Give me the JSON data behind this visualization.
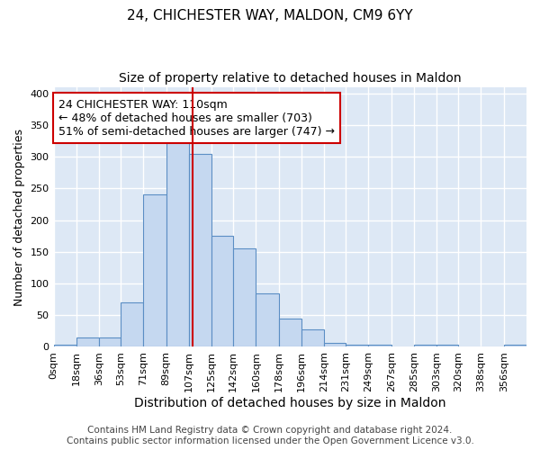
{
  "title": "24, CHICHESTER WAY, MALDON, CM9 6YY",
  "subtitle": "Size of property relative to detached houses in Maldon",
  "xlabel": "Distribution of detached houses by size in Maldon",
  "ylabel": "Number of detached properties",
  "bin_labels": [
    "0sqm",
    "18sqm",
    "36sqm",
    "53sqm",
    "71sqm",
    "89sqm",
    "107sqm",
    "125sqm",
    "142sqm",
    "160sqm",
    "178sqm",
    "196sqm",
    "214sqm",
    "231sqm",
    "249sqm",
    "267sqm",
    "285sqm",
    "303sqm",
    "320sqm",
    "338sqm",
    "356sqm"
  ],
  "bin_edges": [
    0,
    18,
    36,
    53,
    71,
    89,
    107,
    125,
    142,
    160,
    178,
    196,
    214,
    231,
    249,
    267,
    285,
    303,
    320,
    338,
    356,
    374
  ],
  "bar_heights": [
    3,
    15,
    15,
    70,
    240,
    335,
    305,
    175,
    155,
    85,
    45,
    27,
    7,
    4,
    4,
    0,
    3,
    3,
    0,
    0,
    3
  ],
  "bar_color": "#c5d8f0",
  "bar_edge_color": "#5b8ec4",
  "property_value": 110,
  "vline_color": "#cc0000",
  "annotation_text": "24 CHICHESTER WAY: 110sqm\n← 48% of detached houses are smaller (703)\n51% of semi-detached houses are larger (747) →",
  "annotation_box_color": "#ffffff",
  "annotation_box_edge_color": "#cc0000",
  "footer_line1": "Contains HM Land Registry data © Crown copyright and database right 2024.",
  "footer_line2": "Contains public sector information licensed under the Open Government Licence v3.0.",
  "ylim": [
    0,
    410
  ],
  "xlim": [
    0,
    374
  ],
  "background_color": "#dde8f5",
  "grid_color": "#ffffff",
  "title_fontsize": 11,
  "subtitle_fontsize": 10,
  "xlabel_fontsize": 10,
  "ylabel_fontsize": 9,
  "tick_fontsize": 8,
  "annotation_fontsize": 9,
  "footer_fontsize": 7.5
}
